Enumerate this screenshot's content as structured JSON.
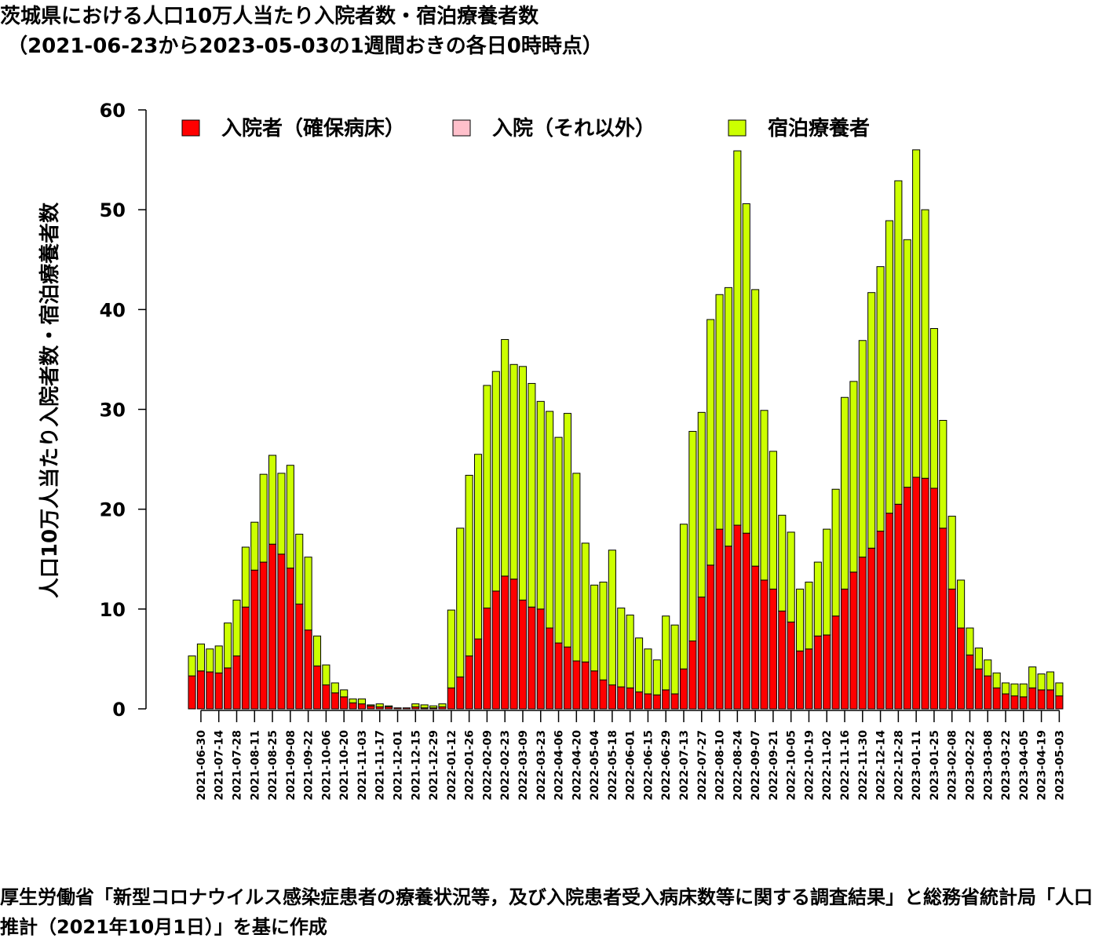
{
  "title_line1": "茨城県における人口10万人当たり入院者数・宿泊療養者数",
  "title_line2": "（2021-06-23から2023-05-03の1週間おきの各日0時時点）",
  "footer": "厚生労働省「新型コロナウイルス感染症患者の療養状況等，及び入院患者受入病床数等に関する調査結果」と総務省統計局「人口推計（2021年10月1日）」を基に作成",
  "colors": {
    "hospital": "#ff0000",
    "hospital_other": "#ffc0cb",
    "hotel": "#ccff00"
  },
  "chart_data": {
    "type": "bar",
    "stacked": true,
    "ylabel": "人口10万人当たり入院者数・宿泊療養者数",
    "ylim": [
      0,
      60
    ],
    "yticks": [
      0,
      10,
      20,
      30,
      40,
      50,
      60
    ],
    "legend_position": "top",
    "categories": [
      "2021-06-23",
      "2021-06-30",
      "2021-07-07",
      "2021-07-14",
      "2021-07-21",
      "2021-07-28",
      "2021-08-04",
      "2021-08-11",
      "2021-08-18",
      "2021-08-25",
      "2021-09-01",
      "2021-09-08",
      "2021-09-15",
      "2021-09-22",
      "2021-09-29",
      "2021-10-06",
      "2021-10-13",
      "2021-10-20",
      "2021-10-27",
      "2021-11-03",
      "2021-11-10",
      "2021-11-17",
      "2021-11-24",
      "2021-12-01",
      "2021-12-08",
      "2021-12-15",
      "2021-12-22",
      "2021-12-29",
      "2022-01-05",
      "2022-01-12",
      "2022-01-19",
      "2022-01-26",
      "2022-02-02",
      "2022-02-09",
      "2022-02-16",
      "2022-02-23",
      "2022-03-02",
      "2022-03-09",
      "2022-03-16",
      "2022-03-23",
      "2022-03-30",
      "2022-04-06",
      "2022-04-13",
      "2022-04-20",
      "2022-04-27",
      "2022-05-04",
      "2022-05-11",
      "2022-05-18",
      "2022-05-25",
      "2022-06-01",
      "2022-06-08",
      "2022-06-15",
      "2022-06-22",
      "2022-06-29",
      "2022-07-06",
      "2022-07-13",
      "2022-07-20",
      "2022-07-27",
      "2022-08-03",
      "2022-08-10",
      "2022-08-17",
      "2022-08-24",
      "2022-08-31",
      "2022-09-07",
      "2022-09-14",
      "2022-09-21",
      "2022-09-28",
      "2022-10-05",
      "2022-10-12",
      "2022-10-19",
      "2022-10-26",
      "2022-11-02",
      "2022-11-09",
      "2022-11-16",
      "2022-11-23",
      "2022-11-30",
      "2022-12-07",
      "2022-12-14",
      "2022-12-21",
      "2022-12-28",
      "2023-01-04",
      "2023-01-11",
      "2023-01-18",
      "2023-01-25",
      "2023-02-01",
      "2023-02-08",
      "2023-02-15",
      "2023-02-22",
      "2023-03-01",
      "2023-03-08",
      "2023-03-15",
      "2023-03-22",
      "2023-03-29",
      "2023-04-05",
      "2023-04-12",
      "2023-04-19",
      "2023-04-26",
      "2023-05-03"
    ],
    "xtick_labels": [
      "2021-06-30",
      "2021-07-14",
      "2021-07-28",
      "2021-08-11",
      "2021-08-25",
      "2021-09-08",
      "2021-09-22",
      "2021-10-06",
      "2021-10-20",
      "2021-11-03",
      "2021-11-17",
      "2021-12-01",
      "2021-12-15",
      "2021-12-29",
      "2022-01-12",
      "2022-01-26",
      "2022-02-09",
      "2022-02-23",
      "2022-03-09",
      "2022-03-23",
      "2022-04-06",
      "2022-04-20",
      "2022-05-04",
      "2022-05-18",
      "2022-06-01",
      "2022-06-15",
      "2022-06-29",
      "2022-07-13",
      "2022-07-27",
      "2022-08-10",
      "2022-08-24",
      "2022-09-07",
      "2022-09-21",
      "2022-10-05",
      "2022-10-19",
      "2022-11-02",
      "2022-11-16",
      "2022-11-30",
      "2022-12-14",
      "2022-12-28",
      "2023-01-11",
      "2023-01-25",
      "2023-02-08",
      "2023-02-22",
      "2023-03-08",
      "2023-03-22",
      "2023-04-05",
      "2023-04-19",
      "2023-05-03"
    ],
    "series": [
      {
        "name": "入院者（確保病床）",
        "color": "#ff0000",
        "values": [
          3.3,
          3.8,
          3.7,
          3.6,
          4.1,
          5.3,
          10.2,
          13.9,
          14.7,
          16.5,
          15.5,
          14.1,
          10.5,
          7.9,
          4.3,
          2.4,
          1.6,
          1.2,
          0.6,
          0.5,
          0.3,
          0.2,
          0.2,
          0.1,
          0.1,
          0.2,
          0.1,
          0.1,
          0.2,
          2.1,
          3.2,
          5.3,
          7.0,
          10.1,
          11.8,
          13.3,
          13.0,
          10.9,
          10.2,
          10.0,
          8.1,
          6.6,
          6.2,
          4.8,
          4.7,
          3.8,
          2.9,
          2.4,
          2.2,
          2.1,
          1.7,
          1.5,
          1.4,
          1.9,
          1.5,
          4.0,
          6.8,
          11.2,
          14.4,
          18.0,
          16.3,
          18.4,
          17.6,
          14.3,
          12.9,
          12.0,
          9.8,
          8.7,
          5.8,
          6.0,
          7.3,
          7.4,
          9.3,
          12.0,
          13.7,
          15.2,
          16.1,
          17.8,
          19.6,
          20.5,
          22.2,
          23.2,
          23.1,
          22.1,
          18.1,
          12.0,
          8.1,
          5.4,
          4.0,
          3.3,
          2.1,
          1.5,
          1.3,
          1.2,
          2.1,
          1.9,
          1.9,
          1.3
        ]
      },
      {
        "name": "入院（それ以外）",
        "color": "#ffc0cb",
        "values": [
          0,
          0,
          0,
          0,
          0,
          0,
          0,
          0,
          0,
          0,
          0,
          0,
          0,
          0,
          0,
          0,
          0,
          0,
          0,
          0,
          0,
          0,
          0,
          0,
          0,
          0,
          0,
          0,
          0,
          0,
          0,
          0,
          0,
          0,
          0,
          0,
          0,
          0,
          0,
          0,
          0,
          0,
          0,
          0,
          0,
          0,
          0,
          0,
          0,
          0,
          0,
          0,
          0,
          0,
          0,
          0,
          0,
          0,
          0,
          0,
          0,
          0,
          0,
          0,
          0,
          0,
          0,
          0,
          0,
          0,
          0,
          0,
          0,
          0,
          0,
          0,
          0,
          0,
          0,
          0,
          0,
          0,
          0,
          0,
          0,
          0,
          0,
          0,
          0,
          0,
          0,
          0,
          0,
          0,
          0,
          0,
          0,
          0
        ]
      },
      {
        "name": "宿泊療養者",
        "color": "#ccff00",
        "values": [
          2.0,
          2.7,
          2.3,
          2.7,
          4.5,
          5.6,
          6.0,
          4.8,
          8.8,
          8.9,
          8.1,
          10.3,
          7.0,
          7.3,
          3.0,
          2.0,
          1.0,
          0.7,
          0.4,
          0.5,
          0.1,
          0.3,
          0.1,
          0,
          0,
          0.3,
          0.3,
          0.2,
          0.3,
          7.8,
          14.9,
          18.1,
          18.5,
          22.3,
          22.0,
          23.7,
          21.5,
          23.4,
          22.4,
          20.8,
          21.7,
          20.6,
          23.4,
          18.8,
          11.9,
          8.6,
          9.8,
          13.5,
          7.9,
          7.3,
          5.4,
          4.5,
          3.5,
          7.4,
          6.9,
          14.5,
          21.0,
          18.5,
          24.6,
          23.5,
          25.9,
          37.5,
          33.0,
          27.7,
          17.0,
          13.8,
          9.6,
          9.0,
          6.2,
          6.7,
          7.4,
          10.6,
          12.7,
          19.2,
          19.1,
          21.7,
          25.6,
          26.5,
          29.3,
          32.4,
          24.8,
          32.8,
          26.9,
          16.0,
          10.8,
          7.3,
          4.8,
          2.7,
          2.1,
          1.6,
          1.5,
          1.1,
          1.2,
          1.3,
          2.1,
          1.6,
          1.8,
          1.3
        ]
      }
    ]
  }
}
